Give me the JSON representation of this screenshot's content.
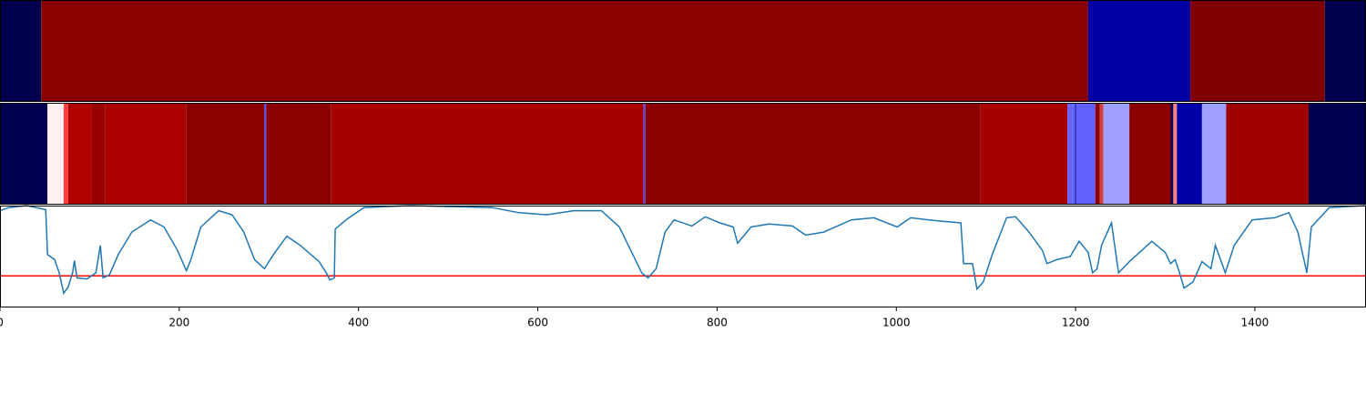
{
  "chart_data": [
    {
      "type": "heatmap",
      "xlim": [
        0,
        1524
      ],
      "edges": [
        0,
        46,
        1214,
        1328,
        1478,
        1524
      ],
      "colors": [
        "#00004c",
        "#8b0000",
        "#0000a5",
        "#7f0000",
        "#00004c"
      ]
    },
    {
      "type": "heatmap",
      "xlim": [
        0,
        1524
      ],
      "edges": [
        0,
        53,
        71,
        76,
        102,
        117,
        208,
        295,
        297,
        369,
        718,
        720,
        1094,
        1191,
        1199,
        1201,
        1222,
        1227,
        1231,
        1260,
        1306,
        1309,
        1313,
        1341,
        1368,
        1460,
        1524
      ],
      "colors": [
        "#000050",
        "#fff0f0",
        "#ff4040",
        "#b00000",
        "#990000",
        "#aa0000",
        "#8b0000",
        "#5050ff",
        "#8b0000",
        "#a80000",
        "#5050ff",
        "#8b0000",
        "#a80000",
        "#6666ff",
        "#3030c0",
        "#6060ff",
        "#8b0000",
        "#d04040",
        "#a0a0ff",
        "#8b0000",
        "#000050",
        "#ff8080",
        "#0000a8",
        "#a0a0ff",
        "#a00000",
        "#000050"
      ]
    },
    {
      "type": "line",
      "xlim": [
        0,
        1524
      ],
      "ylim": [
        0,
        1
      ],
      "xticks": [
        0,
        200,
        400,
        600,
        800,
        1000,
        1200,
        1400
      ],
      "color": "#1f77b4",
      "hline": 0.31,
      "hline_color": "#ff0000",
      "x": [
        0,
        10,
        30,
        51,
        53,
        61,
        66,
        71,
        76,
        81,
        83,
        86,
        97,
        107,
        112,
        115,
        122,
        132,
        147,
        168,
        183,
        198,
        208,
        213,
        224,
        244,
        259,
        272,
        284,
        295,
        305,
        320,
        335,
        356,
        364,
        368,
        373,
        374,
        386,
        406,
        457,
        549,
        579,
        610,
        640,
        671,
        691,
        706,
        716,
        723,
        732,
        742,
        752,
        772,
        787,
        803,
        818,
        823,
        838,
        858,
        884,
        899,
        919,
        950,
        975,
        1001,
        1016,
        1046,
        1072,
        1075,
        1085,
        1090,
        1097,
        1107,
        1123,
        1133,
        1148,
        1163,
        1168,
        1179,
        1194,
        1204,
        1214,
        1219,
        1224,
        1229,
        1240,
        1248,
        1260,
        1285,
        1300,
        1306,
        1311,
        1316,
        1321,
        1331,
        1341,
        1351,
        1356,
        1367,
        1377,
        1397,
        1422,
        1438,
        1448,
        1458,
        1463,
        1483,
        1524
      ],
      "values": [
        0.95,
        0.98,
        1.0,
        0.96,
        0.52,
        0.47,
        0.34,
        0.14,
        0.2,
        0.34,
        0.46,
        0.29,
        0.28,
        0.34,
        0.61,
        0.29,
        0.32,
        0.52,
        0.74,
        0.86,
        0.79,
        0.56,
        0.36,
        0.47,
        0.79,
        0.95,
        0.91,
        0.74,
        0.47,
        0.38,
        0.52,
        0.7,
        0.61,
        0.45,
        0.34,
        0.27,
        0.29,
        0.77,
        0.86,
        0.98,
        1.0,
        0.98,
        0.93,
        0.91,
        0.95,
        0.95,
        0.79,
        0.52,
        0.34,
        0.29,
        0.38,
        0.74,
        0.86,
        0.8,
        0.89,
        0.83,
        0.79,
        0.63,
        0.79,
        0.82,
        0.8,
        0.71,
        0.74,
        0.86,
        0.88,
        0.79,
        0.88,
        0.85,
        0.83,
        0.43,
        0.43,
        0.18,
        0.25,
        0.52,
        0.88,
        0.89,
        0.74,
        0.56,
        0.43,
        0.47,
        0.5,
        0.65,
        0.54,
        0.34,
        0.38,
        0.61,
        0.83,
        0.34,
        0.45,
        0.65,
        0.54,
        0.43,
        0.47,
        0.34,
        0.19,
        0.25,
        0.45,
        0.38,
        0.61,
        0.34,
        0.61,
        0.86,
        0.88,
        0.93,
        0.74,
        0.34,
        0.79,
        0.98,
        1.0
      ]
    }
  ]
}
